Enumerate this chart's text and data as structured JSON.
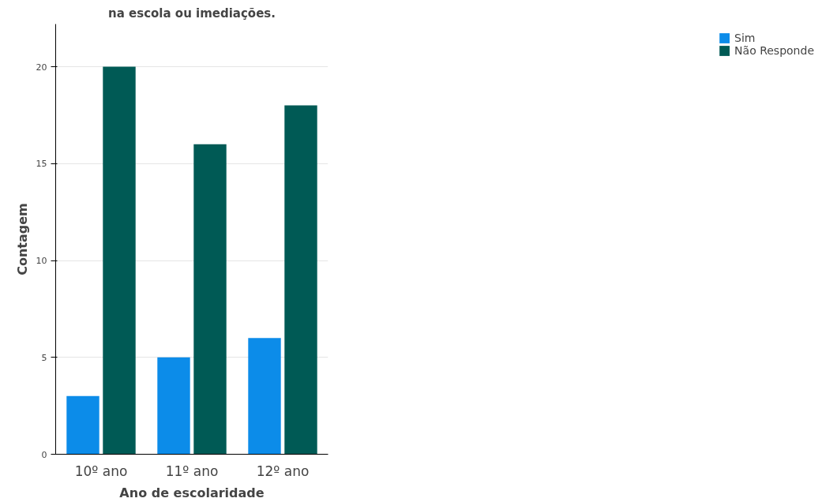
{
  "chart_data": {
    "type": "bar",
    "title": "na escola ou imediações.",
    "xlabel": "Ano de escolaridade",
    "ylabel": "Contagem",
    "categories": [
      "10º ano",
      "11º ano",
      "12º ano"
    ],
    "series": [
      {
        "name": "Sim",
        "color": "#0c8ce9",
        "values": [
          3,
          5,
          6
        ]
      },
      {
        "name": "Não Responde",
        "color": "#005a55",
        "values": [
          20,
          16,
          18
        ]
      }
    ],
    "ylim": [
      0,
      22.2
    ],
    "yticks": [
      0,
      5,
      10,
      15,
      20
    ],
    "grid": "y",
    "legend": "right"
  }
}
